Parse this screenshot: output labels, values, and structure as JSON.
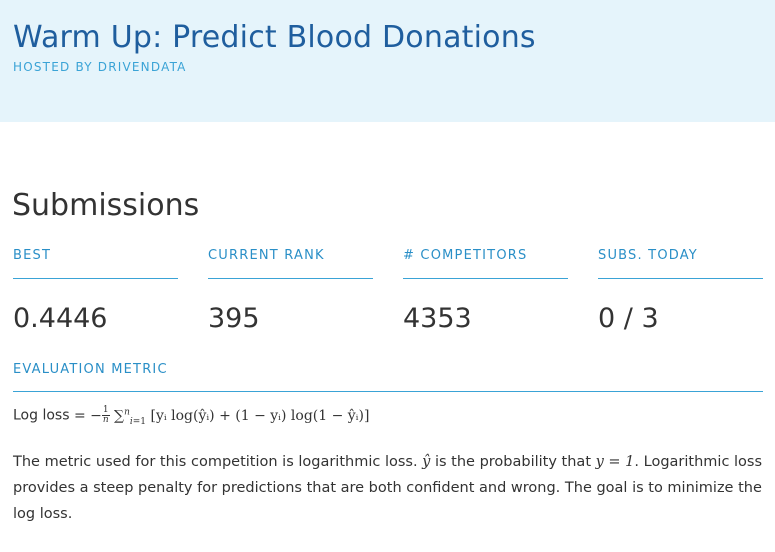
{
  "header": {
    "title": "Warm Up: Predict Blood Donations",
    "hosted_by": "HOSTED BY DRIVENDATA",
    "bg_color": "#e5f4fb",
    "title_color": "#1f5e9e"
  },
  "submissions": {
    "title": "Submissions",
    "stats": [
      {
        "label": "BEST",
        "value": "0.4446"
      },
      {
        "label": "CURRENT RANK",
        "value": "395"
      },
      {
        "label": "# COMPETITORS",
        "value": "4353"
      },
      {
        "label": "SUBS. TODAY",
        "value": "0 / 3"
      }
    ]
  },
  "evaluation": {
    "label": "EVALUATION METRIC",
    "formula_prefix": "Log loss",
    "formula_body": "[yᵢ log(ŷᵢ) + (1 − yᵢ) log(1 − ŷᵢ)]",
    "desc_1": "The metric used for this competition is logarithmic loss. ",
    "desc_yhat": "ŷ",
    "desc_2": " is the probability that ",
    "desc_eq": "y = 1",
    "desc_3": ". Logarithmic loss provides a steep penalty for predictions that are both confident and wrong. The goal is to minimize the log loss."
  },
  "colors": {
    "accent": "#3aa3d6",
    "label": "#2a8fc7",
    "text": "#333333"
  }
}
